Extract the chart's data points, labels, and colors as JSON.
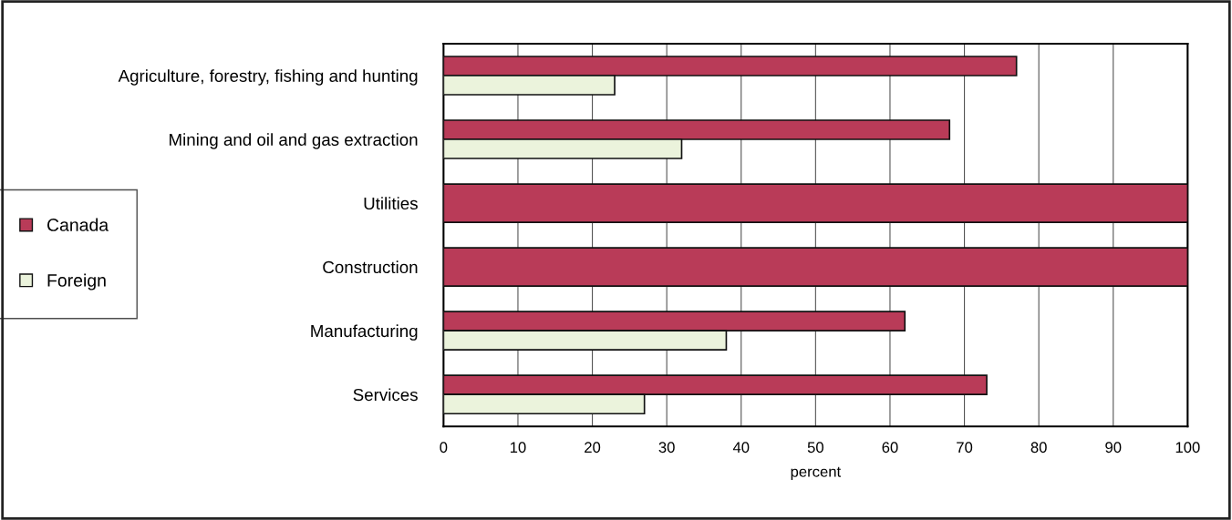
{
  "chart_data": {
    "type": "bar",
    "orientation": "horizontal",
    "xlabel": "percent",
    "categories": [
      "Agriculture, forestry, fishing and hunting",
      "Mining and oil and gas extraction",
      "Utilities",
      "Construction",
      "Manufacturing",
      "Services"
    ],
    "series": [
      {
        "name": "Canada",
        "color": "#b93b58",
        "values": [
          77,
          68,
          100,
          100,
          62,
          73
        ]
      },
      {
        "name": "Foreign",
        "color": "#ebf3dc",
        "values": [
          23,
          32,
          null,
          null,
          38,
          27
        ]
      }
    ],
    "xlim": [
      0,
      100
    ],
    "xticks": [
      0,
      10,
      20,
      30,
      40,
      50,
      60,
      70,
      80,
      90,
      100
    ],
    "grid": "x",
    "legend": "left"
  }
}
